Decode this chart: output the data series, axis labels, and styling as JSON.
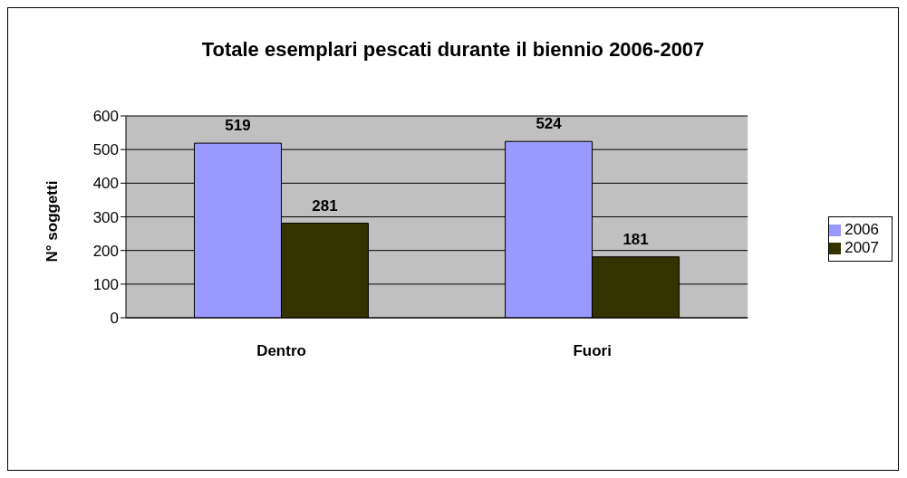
{
  "chart_data": {
    "type": "bar",
    "title": "Totale esemplari pescati durante il biennio 2006-2007",
    "ylabel": "N° soggetti",
    "categories": [
      "Dentro",
      "Fuori"
    ],
    "series": [
      {
        "name": "2006",
        "color": "#9999ff",
        "values": [
          519,
          524
        ]
      },
      {
        "name": "2007",
        "color": "#333300",
        "values": [
          281,
          181
        ]
      }
    ],
    "ylim": [
      0,
      600
    ],
    "yticks": [
      0,
      100,
      200,
      300,
      400,
      500,
      600
    ],
    "grid": "y",
    "legend": "right",
    "data_labels": true
  }
}
